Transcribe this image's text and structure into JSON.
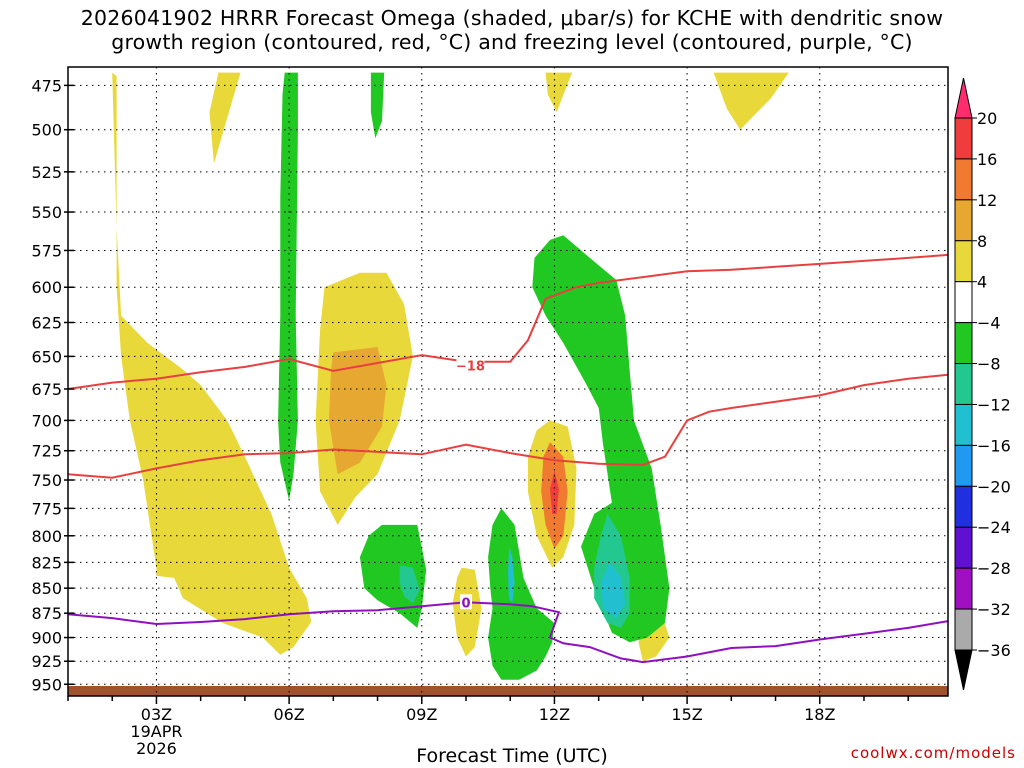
{
  "chart_data": {
    "type": "heatmap",
    "title_line1": "2026041902 HRRR Forecast Omega (shaded, μbar/s) for KCHE with dendritic snow",
    "title_line2": "growth region (contoured, red, °C) and freezing level (contoured, purple, °C)",
    "xlabel": "Forecast Time (UTC)",
    "ylabel": "",
    "credit": "coolwx.com/models",
    "x_range_hours": [
      1,
      20.9
    ],
    "y_range_hpa": [
      465,
      963
    ],
    "y_ticks": [
      "475",
      "500",
      "525",
      "550",
      "575",
      "600",
      "625",
      "650",
      "675",
      "700",
      "725",
      "750",
      "775",
      "800",
      "825",
      "850",
      "875",
      "900",
      "925",
      "950"
    ],
    "x_ticks": [
      {
        "hour": 3,
        "label": "03Z"
      },
      {
        "hour": 6,
        "label": "06Z"
      },
      {
        "hour": 9,
        "label": "09Z"
      },
      {
        "hour": 12,
        "label": "12Z"
      },
      {
        "hour": 15,
        "label": "15Z"
      },
      {
        "hour": 18,
        "label": "18Z"
      }
    ],
    "date_label_1": "19APR",
    "date_label_2": "2026",
    "colorbar": {
      "labels": [
        "20",
        "16",
        "12",
        "8",
        "4",
        "−4",
        "−8",
        "−12",
        "−16",
        "−20",
        "−24",
        "−28",
        "−32",
        "−36"
      ],
      "colors": [
        "#ff2d6e",
        "#f03c3c",
        "#ef7a30",
        "#e6a830",
        "#e8d83a",
        "#ffffff",
        "#22c822",
        "#22c890",
        "#20c0d0",
        "#209af0",
        "#2030e0",
        "#6010d0",
        "#a010c0",
        "#aaaaaa",
        "#000000"
      ]
    },
    "contours": {
      "dgz_upper_label": "−18",
      "freezing_label": "0",
      "dgz_upper": [
        [
          1,
          675
        ],
        [
          2,
          670
        ],
        [
          3,
          667
        ],
        [
          4,
          662
        ],
        [
          5,
          658
        ],
        [
          6,
          652
        ],
        [
          7,
          661
        ],
        [
          8,
          655
        ],
        [
          9,
          649
        ],
        [
          10,
          654
        ],
        [
          11,
          654
        ],
        [
          11.4,
          638
        ],
        [
          11.8,
          608
        ],
        [
          12.5,
          600
        ],
        [
          13,
          597
        ],
        [
          14,
          593
        ],
        [
          15,
          589
        ],
        [
          16,
          588
        ],
        [
          17,
          586
        ],
        [
          18,
          584
        ],
        [
          19,
          582
        ],
        [
          20,
          580
        ],
        [
          20.9,
          578
        ]
      ],
      "dgz_lower": [
        [
          1,
          745
        ],
        [
          2,
          748
        ],
        [
          3,
          740
        ],
        [
          4,
          733
        ],
        [
          5,
          728
        ],
        [
          6,
          727
        ],
        [
          7,
          724
        ],
        [
          8,
          726
        ],
        [
          9,
          728
        ],
        [
          10,
          720
        ],
        [
          11,
          727
        ],
        [
          12,
          733
        ],
        [
          13,
          736
        ],
        [
          14,
          737
        ],
        [
          14.5,
          730
        ],
        [
          15,
          700
        ],
        [
          15.5,
          693
        ],
        [
          16,
          690
        ],
        [
          17,
          685
        ],
        [
          18,
          680
        ],
        [
          19,
          672
        ],
        [
          20,
          667
        ],
        [
          20.9,
          664
        ]
      ],
      "freezing": [
        [
          1,
          876
        ],
        [
          2,
          880
        ],
        [
          3,
          886
        ],
        [
          4,
          884
        ],
        [
          5,
          881
        ],
        [
          6,
          876
        ],
        [
          7,
          873
        ],
        [
          8,
          872
        ],
        [
          9,
          868
        ],
        [
          10,
          864
        ],
        [
          11,
          866
        ],
        [
          11.5,
          868
        ],
        [
          12.1,
          874
        ],
        [
          11.9,
          900
        ],
        [
          12.2,
          906
        ],
        [
          12.8,
          910
        ],
        [
          13.5,
          922
        ],
        [
          14,
          926
        ],
        [
          15,
          920
        ],
        [
          16,
          911
        ],
        [
          17,
          909
        ],
        [
          18,
          902
        ],
        [
          19,
          896
        ],
        [
          20,
          890
        ],
        [
          20.9,
          883
        ]
      ]
    },
    "omega_regions": [
      {
        "color": "#e8d83a",
        "points": [
          [
            2,
            468
          ],
          [
            2.1,
            560
          ],
          [
            2.2,
            620
          ],
          [
            2.8,
            640
          ],
          [
            3.6,
            660
          ],
          [
            4,
            672
          ],
          [
            4.6,
            700
          ],
          [
            5,
            730
          ],
          [
            5.6,
            780
          ],
          [
            6,
            830
          ],
          [
            6.4,
            860
          ],
          [
            6.5,
            884
          ],
          [
            6.1,
            910
          ],
          [
            5.8,
            918
          ],
          [
            5.4,
            900
          ],
          [
            4.5,
            885
          ],
          [
            3.6,
            860
          ],
          [
            3.4,
            840
          ],
          [
            3,
            838
          ],
          [
            3,
            830
          ],
          [
            2.7,
            750
          ],
          [
            2.4,
            700
          ],
          [
            2.2,
            650
          ],
          [
            2.1,
            600
          ],
          [
            2.1,
            470
          ]
        ]
      },
      {
        "color": "#e8d83a",
        "points": [
          [
            4.4,
            468
          ],
          [
            4.9,
            468
          ],
          [
            4.5,
            502
          ],
          [
            4.3,
            520
          ],
          [
            4.2,
            490
          ]
        ]
      },
      {
        "color": "#e8d83a",
        "points": [
          [
            11.8,
            468
          ],
          [
            12.4,
            468
          ],
          [
            12.05,
            490
          ],
          [
            11.85,
            480
          ]
        ]
      },
      {
        "color": "#e8d83a",
        "points": [
          [
            15.6,
            468
          ],
          [
            17.3,
            468
          ],
          [
            16.9,
            482
          ],
          [
            16.2,
            500
          ],
          [
            15.9,
            488
          ]
        ]
      },
      {
        "color": "#e8d83a",
        "points": [
          [
            7.6,
            590
          ],
          [
            8.2,
            590
          ],
          [
            8.6,
            612
          ],
          [
            8.8,
            650
          ],
          [
            8.5,
            700
          ],
          [
            8,
            745
          ],
          [
            7.5,
            765
          ],
          [
            7.1,
            790
          ],
          [
            6.7,
            760
          ],
          [
            6.6,
            700
          ],
          [
            6.7,
            630
          ],
          [
            6.8,
            600
          ]
        ]
      },
      {
        "color": "#e6a830",
        "points": [
          [
            7,
            647
          ],
          [
            8,
            643
          ],
          [
            8.2,
            672
          ],
          [
            8.1,
            705
          ],
          [
            7.6,
            735
          ],
          [
            7.1,
            745
          ],
          [
            6.9,
            700
          ],
          [
            6.95,
            660
          ]
        ]
      },
      {
        "color": "#e8d83a",
        "points": [
          [
            11.9,
            700
          ],
          [
            12.3,
            705
          ],
          [
            12.5,
            740
          ],
          [
            12.45,
            790
          ],
          [
            12.2,
            820
          ],
          [
            11.95,
            830
          ],
          [
            11.6,
            800
          ],
          [
            11.4,
            760
          ],
          [
            11.4,
            730
          ],
          [
            11.6,
            708
          ]
        ]
      },
      {
        "color": "#ef7a30",
        "points": [
          [
            11.9,
            718
          ],
          [
            12.2,
            730
          ],
          [
            12.3,
            760
          ],
          [
            12.2,
            800
          ],
          [
            12,
            812
          ],
          [
            11.8,
            790
          ],
          [
            11.7,
            760
          ],
          [
            11.75,
            730
          ]
        ]
      },
      {
        "color": "#f03c3c",
        "points": [
          [
            12,
            742
          ],
          [
            12.1,
            758
          ],
          [
            12.05,
            780
          ],
          [
            11.95,
            780
          ],
          [
            11.9,
            758
          ]
        ]
      },
      {
        "color": "#e8d83a",
        "points": [
          [
            9.9,
            830
          ],
          [
            10.2,
            832
          ],
          [
            10.35,
            870
          ],
          [
            10.2,
            910
          ],
          [
            10,
            920
          ],
          [
            9.8,
            900
          ],
          [
            9.7,
            865
          ],
          [
            9.8,
            840
          ]
        ]
      },
      {
        "color": "#e8d83a",
        "points": [
          [
            14.1,
            883
          ],
          [
            14.5,
            886
          ],
          [
            14.6,
            900
          ],
          [
            14.3,
            920
          ],
          [
            14,
            925
          ],
          [
            13.9,
            905
          ],
          [
            14,
            890
          ]
        ]
      },
      {
        "color": "#22c822",
        "points": [
          [
            5.9,
            468
          ],
          [
            6.2,
            468
          ],
          [
            6.2,
            500
          ],
          [
            6.15,
            620
          ],
          [
            6.2,
            700
          ],
          [
            6.1,
            745
          ],
          [
            6,
            768
          ],
          [
            5.8,
            735
          ],
          [
            5.75,
            700
          ],
          [
            5.8,
            620
          ],
          [
            5.8,
            540
          ],
          [
            5.85,
            480
          ]
        ]
      },
      {
        "color": "#22c822",
        "points": [
          [
            7.85,
            468
          ],
          [
            8.15,
            468
          ],
          [
            8.1,
            495
          ],
          [
            7.95,
            505
          ],
          [
            7.85,
            490
          ]
        ]
      },
      {
        "color": "#22c822",
        "points": [
          [
            8.1,
            790
          ],
          [
            8.9,
            790
          ],
          [
            9.1,
            832
          ],
          [
            9,
            870
          ],
          [
            8.9,
            890
          ],
          [
            8.5,
            875
          ],
          [
            8,
            862
          ],
          [
            7.7,
            850
          ],
          [
            7.6,
            820
          ],
          [
            7.8,
            800
          ]
        ]
      },
      {
        "color": "#22c890",
        "points": [
          [
            8.5,
            828
          ],
          [
            8.8,
            830
          ],
          [
            8.95,
            852
          ],
          [
            8.8,
            865
          ],
          [
            8.6,
            858
          ],
          [
            8.5,
            845
          ]
        ]
      },
      {
        "color": "#22c822",
        "points": [
          [
            10.8,
            775
          ],
          [
            11.1,
            790
          ],
          [
            11.3,
            840
          ],
          [
            11.6,
            870
          ],
          [
            12,
            885
          ],
          [
            11.95,
            905
          ],
          [
            11.8,
            920
          ],
          [
            11.6,
            935
          ],
          [
            11.2,
            945
          ],
          [
            10.8,
            945
          ],
          [
            10.6,
            930
          ],
          [
            10.5,
            900
          ],
          [
            10.6,
            870
          ],
          [
            10.55,
            850
          ],
          [
            10.5,
            820
          ],
          [
            10.6,
            790
          ]
        ]
      },
      {
        "color": "#20c0d0",
        "points": [
          [
            10.98,
            810
          ],
          [
            11.05,
            820
          ],
          [
            11.1,
            845
          ],
          [
            11.05,
            865
          ],
          [
            10.97,
            860
          ],
          [
            10.95,
            835
          ]
        ]
      },
      {
        "color": "#22c822",
        "points": [
          [
            12.2,
            565
          ],
          [
            12.8,
            580
          ],
          [
            13.4,
            595
          ],
          [
            13.6,
            620
          ],
          [
            13.7,
            660
          ],
          [
            13.8,
            700
          ],
          [
            14.2,
            740
          ],
          [
            14.4,
            790
          ],
          [
            14.6,
            850
          ],
          [
            14.5,
            885
          ],
          [
            14.1,
            900
          ],
          [
            13.7,
            905
          ],
          [
            13.3,
            895
          ],
          [
            12.9,
            850
          ],
          [
            12.6,
            810
          ],
          [
            12.9,
            780
          ],
          [
            13.3,
            770
          ],
          [
            13.1,
            720
          ],
          [
            13,
            690
          ],
          [
            12.7,
            670
          ],
          [
            12.2,
            640
          ],
          [
            11.8,
            620
          ],
          [
            11.5,
            600
          ],
          [
            11.55,
            580
          ],
          [
            11.9,
            568
          ]
        ]
      },
      {
        "color": "#22c890",
        "points": [
          [
            13.2,
            780
          ],
          [
            13.5,
            800
          ],
          [
            13.7,
            840
          ],
          [
            13.7,
            875
          ],
          [
            13.5,
            890
          ],
          [
            13.2,
            885
          ],
          [
            12.9,
            860
          ],
          [
            12.9,
            830
          ],
          [
            13.05,
            800
          ]
        ]
      },
      {
        "color": "#20c0d0",
        "points": [
          [
            13.25,
            825
          ],
          [
            13.5,
            840
          ],
          [
            13.6,
            865
          ],
          [
            13.4,
            880
          ],
          [
            13.1,
            870
          ],
          [
            13.05,
            845
          ]
        ]
      }
    ]
  }
}
